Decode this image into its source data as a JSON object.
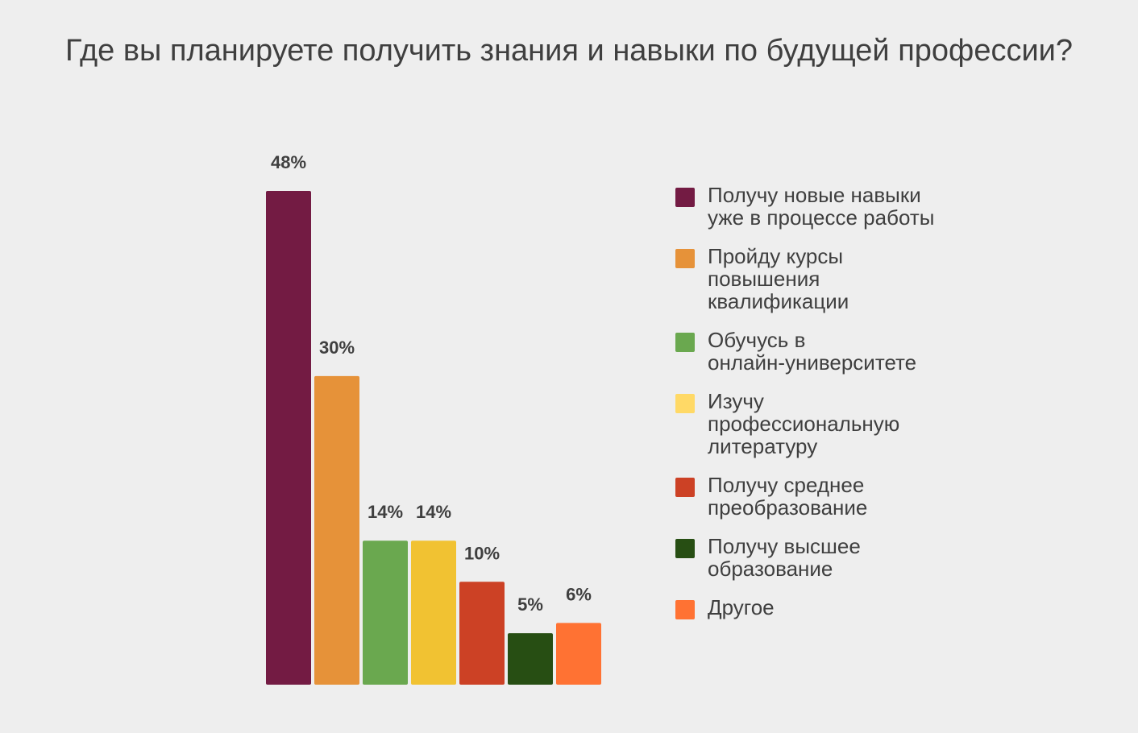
{
  "chart_data": {
    "type": "bar",
    "title": "Где вы планируете получить знания и навыки по будущей профессии?",
    "categories": [
      "Получу новые навыки уже в процессе работы",
      "Пройду курсы повышения квалификации",
      "Обучусь в онлайн-университете",
      "Изучу профессиональную литературу",
      "Получу среднее преобразование",
      "Получу высшее образование",
      "Другое"
    ],
    "values": [
      48,
      30,
      14,
      14,
      10,
      5,
      6
    ],
    "value_labels": [
      "48%",
      "30%",
      "14%",
      "14%",
      "10%",
      "5%",
      "6%"
    ],
    "colors": [
      "#731b43",
      "#e69239",
      "#6aa84f",
      "#f1c232",
      "#cc4125",
      "#274e13",
      "#ff7233"
    ],
    "legend_colors": [
      "#731b43",
      "#e69239",
      "#6aa84f",
      "#ffd966",
      "#cc4125",
      "#274e13",
      "#ff7233"
    ],
    "ylim": [
      0,
      48
    ],
    "grid": false,
    "legend_position": "right"
  },
  "legend": {
    "items": [
      {
        "lines": [
          "Получу новые навыки",
          "уже в процессе работы"
        ]
      },
      {
        "lines": [
          "Пройду курсы",
          "повышения",
          "квалификации"
        ]
      },
      {
        "lines": [
          "Обучусь в",
          "онлайн-университете"
        ]
      },
      {
        "lines": [
          "Изучу",
          "профессиональную",
          "литературу"
        ]
      },
      {
        "lines": [
          "Получу среднее",
          "преобразование"
        ]
      },
      {
        "lines": [
          "Получу высшее",
          "образование"
        ]
      },
      {
        "lines": [
          "Другое"
        ]
      }
    ]
  }
}
